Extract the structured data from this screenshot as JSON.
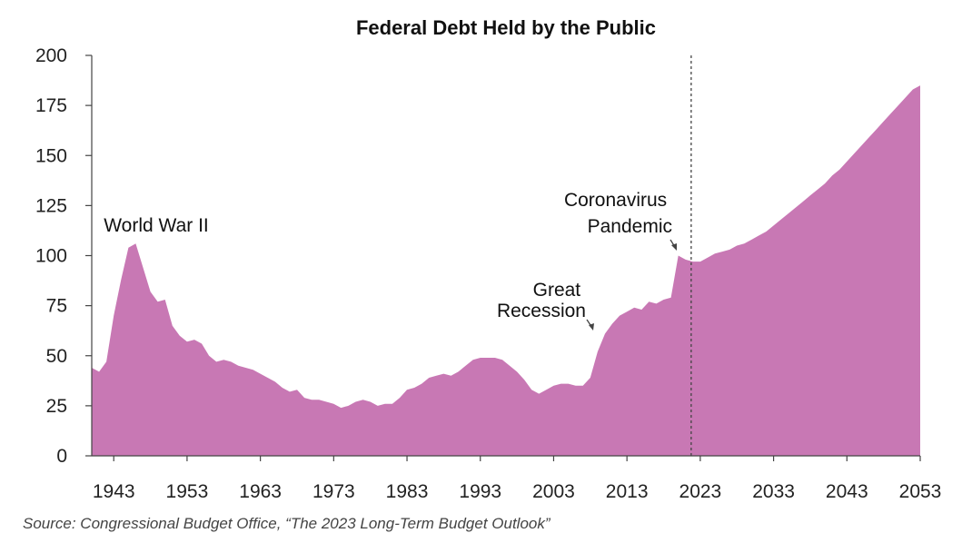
{
  "chart_data": {
    "type": "area",
    "title": "Federal Debt Held by the Public",
    "xlabel": "",
    "ylabel": "",
    "ylim": [
      0,
      200
    ],
    "xlim": [
      1940,
      2053
    ],
    "y_ticks": [
      0,
      25,
      50,
      75,
      100,
      125,
      150,
      175,
      200
    ],
    "x_ticks": [
      1943,
      1953,
      1963,
      1973,
      1983,
      1993,
      2003,
      2013,
      2023,
      2033,
      2043,
      2053
    ],
    "y_tick_labels": [
      "0",
      "25",
      "50",
      "75",
      "100",
      "125",
      "150",
      "175",
      "200"
    ],
    "x_tick_labels": [
      "1943",
      "1953",
      "1963",
      "1973",
      "1983",
      "1993",
      "2003",
      "2013",
      "2023",
      "2033",
      "2043",
      "2053"
    ],
    "grid": false,
    "projection_start": 2023,
    "series": [
      {
        "color": "#c878b4",
        "x": [
          1940,
          1941,
          1942,
          1943,
          1944,
          1945,
          1946,
          1947,
          1948,
          1949,
          1950,
          1951,
          1952,
          1953,
          1954,
          1955,
          1956,
          1957,
          1958,
          1959,
          1960,
          1961,
          1962,
          1963,
          1964,
          1965,
          1966,
          1967,
          1968,
          1969,
          1970,
          1971,
          1972,
          1973,
          1974,
          1975,
          1976,
          1977,
          1978,
          1979,
          1980,
          1981,
          1982,
          1983,
          1984,
          1985,
          1986,
          1987,
          1988,
          1989,
          1990,
          1991,
          1992,
          1993,
          1994,
          1995,
          1996,
          1997,
          1998,
          1999,
          2000,
          2001,
          2002,
          2003,
          2004,
          2005,
          2006,
          2007,
          2008,
          2009,
          2010,
          2011,
          2012,
          2013,
          2014,
          2015,
          2016,
          2017,
          2018,
          2019,
          2020,
          2021,
          2022,
          2023,
          2024,
          2025,
          2026,
          2027,
          2028,
          2029,
          2030,
          2031,
          2032,
          2033,
          2034,
          2035,
          2036,
          2037,
          2038,
          2039,
          2040,
          2041,
          2042,
          2043,
          2044,
          2045,
          2046,
          2047,
          2048,
          2049,
          2050,
          2051,
          2052,
          2053
        ],
        "values": [
          44,
          42,
          47,
          70,
          88,
          104,
          106,
          94,
          82,
          77,
          78,
          65,
          60,
          57,
          58,
          56,
          50,
          47,
          48,
          47,
          45,
          44,
          43,
          41,
          39,
          37,
          34,
          32,
          33,
          29,
          28,
          28,
          27,
          26,
          24,
          25,
          27,
          28,
          27,
          25,
          26,
          26,
          29,
          33,
          34,
          36,
          39,
          40,
          41,
          40,
          42,
          45,
          48,
          49,
          49,
          49,
          48,
          45,
          42,
          38,
          33,
          31,
          33,
          35,
          36,
          36,
          35,
          35,
          39,
          52,
          61,
          66,
          70,
          72,
          74,
          73,
          77,
          76,
          78,
          79,
          100,
          98,
          97,
          97,
          99,
          101,
          102,
          103,
          105,
          106,
          108,
          110,
          112,
          115,
          118,
          121,
          124,
          127,
          130,
          133,
          136,
          140,
          143,
          147,
          151,
          155,
          159,
          163,
          167,
          171,
          175,
          179,
          183,
          185
        ]
      }
    ],
    "annotations": [
      {
        "text": "World War II",
        "x": 1946,
        "y": 113
      },
      {
        "text": "Great Recession",
        "x": 2003,
        "y": 65,
        "arrow_to_x": 2009,
        "arrow_to_y": 62
      },
      {
        "text": "Coronavirus Pandemic",
        "x": 2016,
        "y": 110,
        "arrow_to_x": 2021,
        "arrow_to_y": 100
      }
    ]
  },
  "source": "Source: Congressional Budget Office, “The 2023 Long-Term Budget Outlook”",
  "annotation_lines": {
    "wwii": [
      "World War II"
    ],
    "recession": [
      "Great",
      "Recession"
    ],
    "covid": [
      "Coronavirus",
      "Pandemic"
    ]
  },
  "colors": {
    "area": "#c878b4",
    "axis": "#444444",
    "dashed_line": "#444444"
  }
}
